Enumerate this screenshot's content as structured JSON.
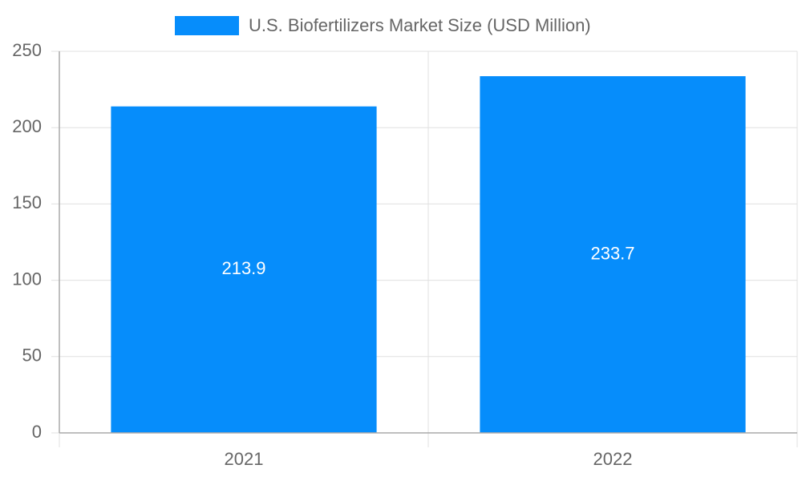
{
  "chart_data": {
    "type": "bar",
    "categories": [
      "2021",
      "2022"
    ],
    "series": [
      {
        "name": "U.S. Biofertilizers Market Size (USD Million)",
        "color": "#068dfb",
        "values": [
          213.9,
          233.7
        ]
      }
    ],
    "ylim": [
      0,
      250
    ],
    "yticks": [
      0,
      50,
      100,
      150,
      200,
      250
    ],
    "grid": true,
    "legend": "top"
  }
}
